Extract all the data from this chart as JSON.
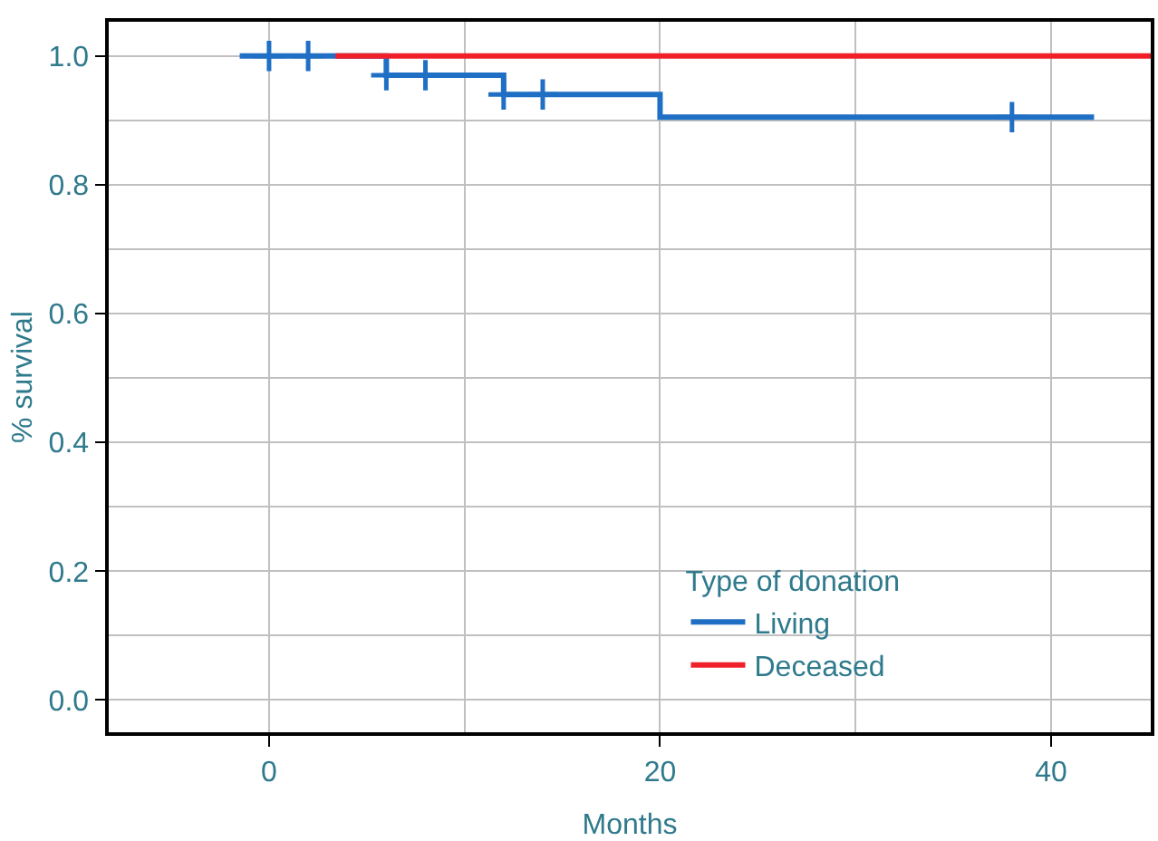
{
  "chart_data": {
    "type": "step",
    "xlabel": "Months",
    "ylabel": "% survival",
    "legend_title": "Type of donation",
    "xlim": [
      -8.2,
      45.1
    ],
    "ylim": [
      -0.05,
      1.053
    ],
    "xticks": [
      0,
      {
        "value": 10,
        "label": null
      },
      20,
      {
        "value": 30,
        "label": null
      },
      40
    ],
    "yticks": [
      "0.0",
      {
        "value": 0.1,
        "label": null
      },
      0.2,
      {
        "value": 0.3,
        "label": null
      },
      0.4,
      {
        "value": 0.5,
        "label": null
      },
      0.6,
      {
        "value": 0.7,
        "label": null
      },
      0.8,
      {
        "value": 0.9,
        "label": null
      },
      {
        "value": 1,
        "label": "1.0"
      }
    ],
    "grid": true,
    "legend": "bottom right",
    "series": [
      {
        "name": "Living",
        "color": "#1f6fc5",
        "x": [
          -1.5,
          6,
          12,
          20,
          42.2
        ],
        "values": [
          1,
          0.97,
          0.94,
          0.905,
          0.905
        ]
      },
      {
        "name": "Deceased",
        "color": "#f0202a",
        "x": [
          3.4,
          45.1
        ],
        "values": [
          1,
          1
        ]
      },
      {
        "type": "scatter",
        "marker": "cross",
        "color": "#1f6fc5",
        "x": [
          0,
          2,
          6,
          8,
          12,
          14,
          38
        ],
        "values": [
          1,
          1,
          0.97,
          0.97,
          0.94,
          0.94,
          0.905
        ]
      }
    ]
  }
}
